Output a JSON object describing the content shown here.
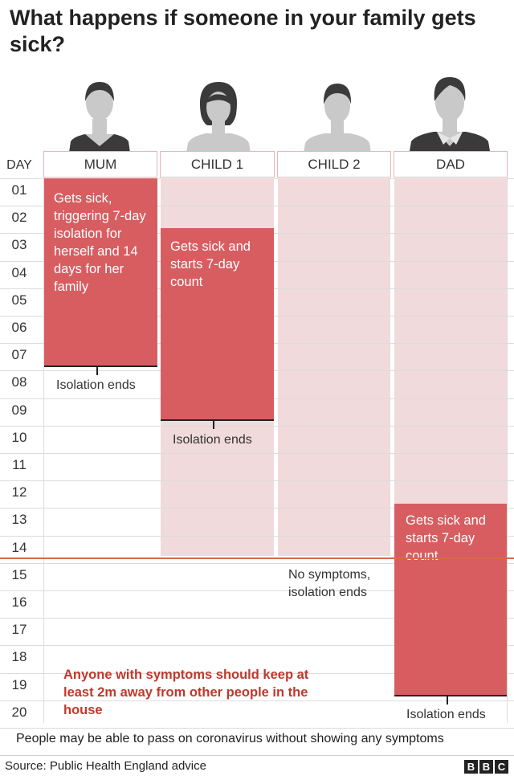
{
  "title": "What happens if someone in your family gets sick?",
  "day_header": "DAY",
  "days": [
    "01",
    "02",
    "03",
    "04",
    "05",
    "06",
    "07",
    "08",
    "09",
    "10",
    "11",
    "12",
    "13",
    "14",
    "15",
    "16",
    "17",
    "18",
    "19",
    "20"
  ],
  "members": [
    {
      "label": "MUM",
      "sick_from_day": 1,
      "isolation_ends_day": 8,
      "bar_text": "Gets sick, triggering 7-day isolation for herself and 14 days for her family",
      "end_note": "Isolation ends"
    },
    {
      "label": "CHILD 1",
      "sick_from_day": 3,
      "isolation_ends_day": 10,
      "bar_text": "Gets sick and starts 7-day count",
      "end_note": "Isolation ends"
    },
    {
      "label": "CHILD 2",
      "household_isolation_until_day": 15,
      "end_note": "No symptoms, isolation ends"
    },
    {
      "label": "DAD",
      "sick_from_day": 13,
      "isolation_ends_day": 20,
      "bar_text": "Gets sick and starts 7-day count",
      "end_note": "Isolation ends"
    }
  ],
  "warning": "Anyone with symptoms should keep at least 2m away from other people in the house",
  "footer_note": "People may be able to pass on coronavirus without showing any symptoms",
  "source": "Source: Public Health England advice",
  "brand": [
    "B",
    "B",
    "C"
  ],
  "colors": {
    "sick": "#d75d61",
    "household_isolation": "#f1dadb",
    "today_line": "#d9684a",
    "warning": "#c0392b"
  }
}
